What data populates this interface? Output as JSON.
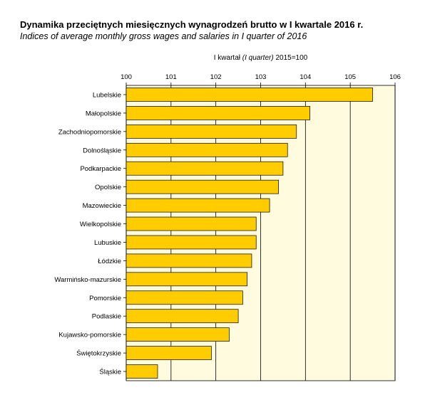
{
  "title": "Dynamika przeciętnych miesięcznych wynagrodzeń brutto w I kwartale 2016 r.",
  "subtitle": "Indices of average monthly gross wages and salaries in I quarter of 2016",
  "unit_prefix": "I kwartał ",
  "unit_italic": "(I quarter)",
  "unit_suffix": " 2015=100",
  "colors": {
    "bar": "#FFCC00",
    "bar_stroke": "#000000",
    "plot_bg": "#FFFBDE"
  },
  "chart_data": {
    "type": "bar",
    "orientation": "horizontal",
    "categories": [
      "Lubelskie",
      "Małopolskie",
      "Zachodniopomorskie",
      "Dolnośląskie",
      "Podkarpackie",
      "Opolskie",
      "Mazowieckie",
      "Wielkopolskie",
      "Lubuskie",
      "Łódzkie",
      "Warmińsko-mazurskie",
      "Pomorskie",
      "Podlaskie",
      "Kujawsko-pomorskie",
      "Świętokrzyskie",
      "Śląskie"
    ],
    "values": [
      105.5,
      104.1,
      103.8,
      103.6,
      103.5,
      103.4,
      103.2,
      102.9,
      102.9,
      102.8,
      102.7,
      102.6,
      102.5,
      102.3,
      101.9,
      100.7
    ],
    "xlim": [
      100,
      106
    ],
    "xticks": [
      "100",
      "101",
      "102",
      "103",
      "104",
      "105",
      "106"
    ],
    "tick_values": [
      100,
      101,
      102,
      103,
      104,
      105,
      106
    ],
    "grid": true,
    "axis_position": "top"
  }
}
